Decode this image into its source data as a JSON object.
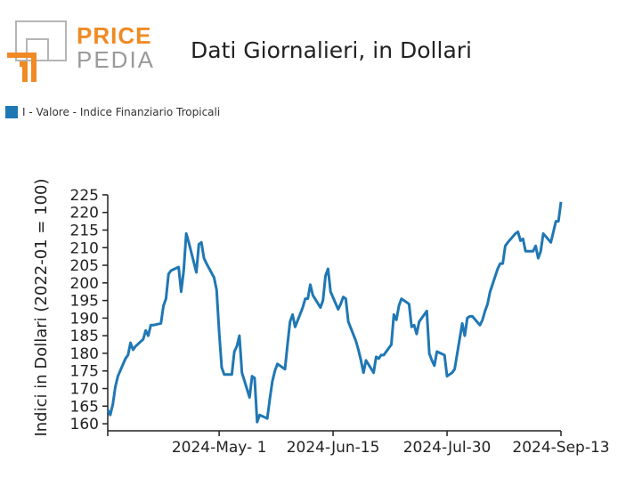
{
  "logo": {
    "line1": "PRICE",
    "line2": "PEDIA"
  },
  "colors": {
    "series": "#1f77b4",
    "logo_orange": "#f08a24",
    "logo_gray": "#9a9a9a"
  },
  "chart_data": {
    "type": "line",
    "title": "Dati Giornalieri, in Dollari",
    "ylabel": "Indici in Dollari (2022-01 = 100)",
    "xlabel": "",
    "ylim": [
      158,
      227
    ],
    "yticks": [
      160,
      165,
      170,
      175,
      180,
      185,
      190,
      195,
      200,
      205,
      210,
      215,
      220,
      225
    ],
    "xlim": [
      "2024-03-18",
      "2024-09-13"
    ],
    "xticks": [
      {
        "date": "2024-05-01",
        "label": "2024-May- 1"
      },
      {
        "date": "2024-06-15",
        "label": "2024-Jun-15"
      },
      {
        "date": "2024-07-30",
        "label": "2024-Jul-30"
      },
      {
        "date": "2024-09-13",
        "label": "2024-Sep-13"
      }
    ],
    "legend": "top-left",
    "grid": false,
    "series": [
      {
        "name": "I - Valore - Indice Finanziario Tropicali",
        "x": [
          "2024-03-18",
          "2024-03-19",
          "2024-03-20",
          "2024-03-21",
          "2024-03-22",
          "2024-03-25",
          "2024-03-26",
          "2024-03-27",
          "2024-03-28",
          "2024-03-29",
          "2024-04-01",
          "2024-04-02",
          "2024-04-03",
          "2024-04-04",
          "2024-04-05",
          "2024-04-08",
          "2024-04-09",
          "2024-04-10",
          "2024-04-11",
          "2024-04-12",
          "2024-04-15",
          "2024-04-16",
          "2024-04-17",
          "2024-04-18",
          "2024-04-19",
          "2024-04-22",
          "2024-04-23",
          "2024-04-24",
          "2024-04-25",
          "2024-04-26",
          "2024-04-29",
          "2024-04-30",
          "2024-05-01",
          "2024-05-02",
          "2024-05-03",
          "2024-05-06",
          "2024-05-07",
          "2024-05-08",
          "2024-05-09",
          "2024-05-10",
          "2024-05-13",
          "2024-05-14",
          "2024-05-15",
          "2024-05-16",
          "2024-05-17",
          "2024-05-20",
          "2024-05-21",
          "2024-05-22",
          "2024-05-23",
          "2024-05-24",
          "2024-05-27",
          "2024-05-28",
          "2024-05-29",
          "2024-05-30",
          "2024-05-31",
          "2024-06-03",
          "2024-06-04",
          "2024-06-05",
          "2024-06-06",
          "2024-06-07",
          "2024-06-10",
          "2024-06-11",
          "2024-06-12",
          "2024-06-13",
          "2024-06-14",
          "2024-06-17",
          "2024-06-18",
          "2024-06-19",
          "2024-06-20",
          "2024-06-21",
          "2024-06-24",
          "2024-06-25",
          "2024-06-26",
          "2024-06-27",
          "2024-06-28",
          "2024-07-01",
          "2024-07-02",
          "2024-07-03",
          "2024-07-04",
          "2024-07-05",
          "2024-07-08",
          "2024-07-09",
          "2024-07-10",
          "2024-07-11",
          "2024-07-12",
          "2024-07-15",
          "2024-07-16",
          "2024-07-17",
          "2024-07-18",
          "2024-07-19",
          "2024-07-22",
          "2024-07-23",
          "2024-07-24",
          "2024-07-25",
          "2024-07-26",
          "2024-07-29",
          "2024-07-30",
          "2024-07-31",
          "2024-08-01",
          "2024-08-02",
          "2024-08-05",
          "2024-08-06",
          "2024-08-07",
          "2024-08-08",
          "2024-08-09",
          "2024-08-12",
          "2024-08-13",
          "2024-08-14",
          "2024-08-15",
          "2024-08-16",
          "2024-08-19",
          "2024-08-20",
          "2024-08-21",
          "2024-08-22",
          "2024-08-23",
          "2024-08-26",
          "2024-08-27",
          "2024-08-28",
          "2024-08-29",
          "2024-08-30",
          "2024-09-02",
          "2024-09-03",
          "2024-09-04",
          "2024-09-05",
          "2024-09-06",
          "2024-09-09",
          "2024-09-10",
          "2024-09-11",
          "2024-09-12",
          "2024-09-13"
        ],
        "y": [
          164.0,
          162.5,
          165.5,
          170.5,
          173.5,
          178.5,
          179.5,
          183.0,
          181.0,
          182.0,
          184.0,
          186.5,
          185.0,
          188.0,
          188.0,
          188.5,
          193.5,
          195.5,
          202.5,
          203.5,
          204.5,
          197.5,
          203.5,
          214.0,
          211.5,
          203.0,
          211.0,
          211.5,
          207.0,
          205.5,
          201.5,
          198.0,
          186.0,
          176.0,
          174.0,
          174.0,
          180.5,
          182.0,
          185.0,
          174.5,
          167.5,
          173.5,
          173.0,
          160.5,
          162.5,
          161.5,
          167.0,
          172.0,
          175.0,
          177.0,
          175.5,
          182.5,
          189.0,
          191.0,
          187.5,
          193.0,
          195.5,
          195.5,
          199.5,
          196.5,
          193.0,
          195.0,
          202.0,
          204.0,
          197.5,
          192.5,
          194.0,
          196.0,
          195.5,
          189.0,
          183.5,
          181.0,
          178.0,
          174.5,
          178.0,
          174.5,
          179.0,
          178.5,
          179.5,
          179.5,
          182.5,
          191.0,
          189.5,
          193.5,
          195.5,
          194.0,
          187.5,
          188.0,
          185.5,
          189.0,
          192.0,
          180.0,
          178.0,
          176.5,
          180.5,
          179.5,
          173.5,
          174.0,
          174.5,
          175.5,
          188.5,
          185.0,
          190.0,
          190.5,
          190.5,
          188.0,
          189.5,
          192.0,
          194.0,
          197.5,
          204.0,
          205.5,
          205.5,
          210.5,
          211.5,
          214.0,
          214.5,
          212.0,
          212.5,
          209.0,
          209.0,
          210.5,
          207.0,
          209.0,
          214.0,
          211.5,
          214.5,
          217.5,
          217.5,
          223.0
        ]
      }
    ]
  }
}
